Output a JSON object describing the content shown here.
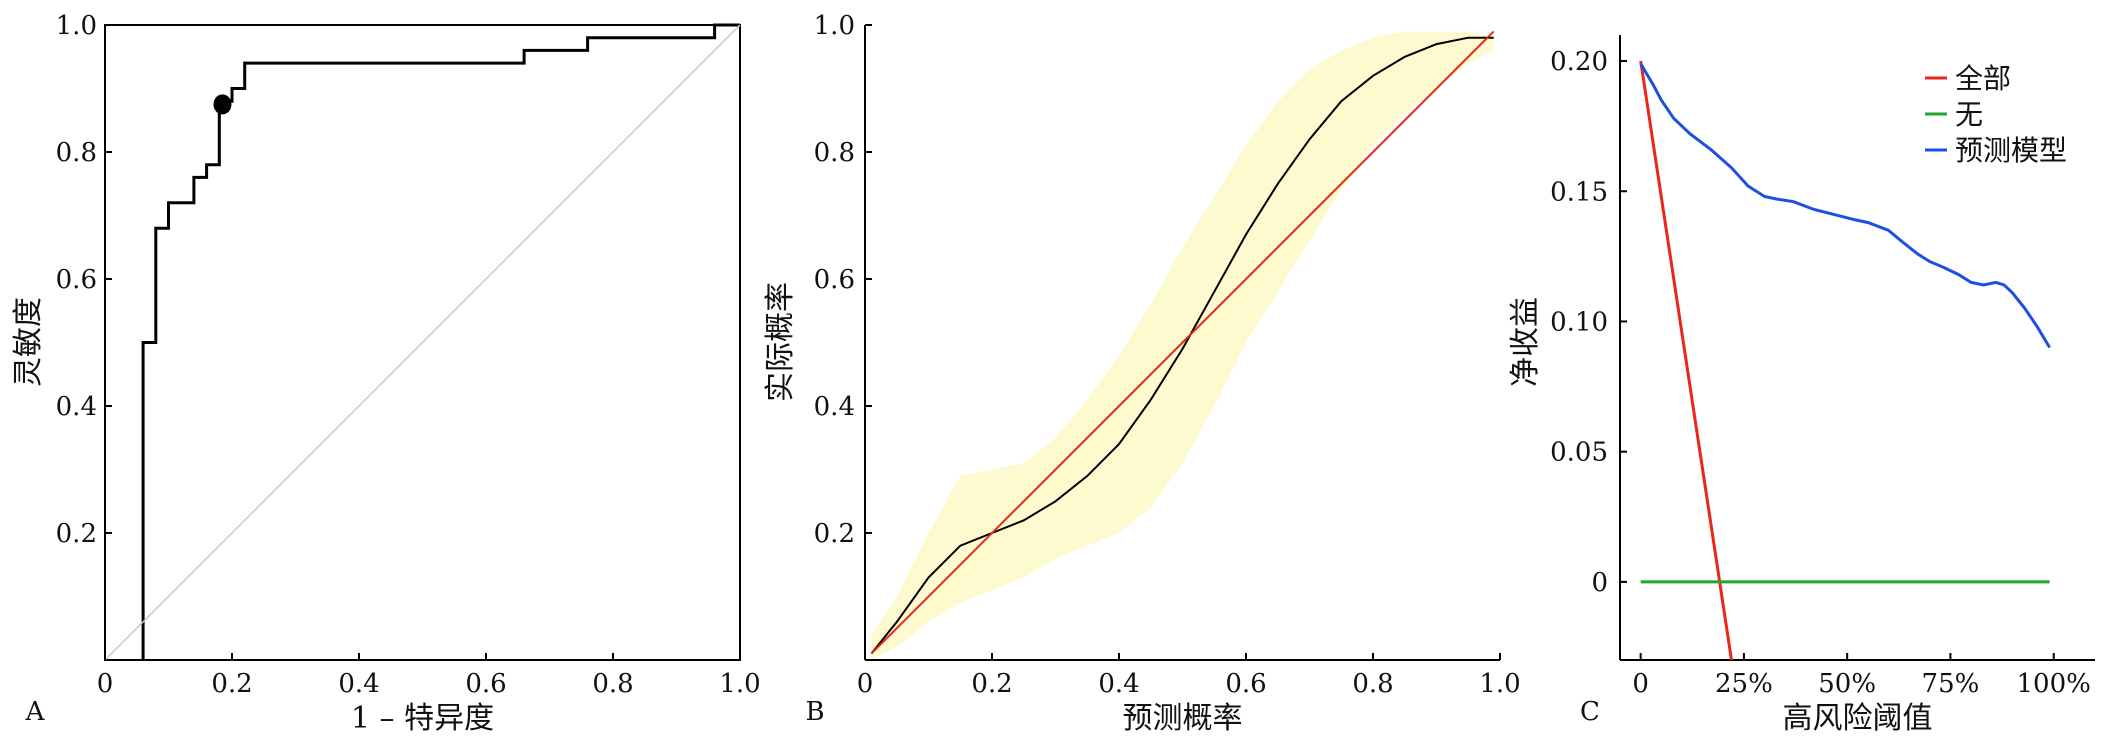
{
  "chart_data": [
    {
      "panel": "A",
      "type": "line",
      "xlabel": "1 – 特异度",
      "ylabel": "灵敏度",
      "xlim": [
        0,
        1
      ],
      "ylim": [
        0,
        1
      ],
      "x_ticks": [
        "0",
        "0.2",
        "0.4",
        "0.6",
        "0.8",
        "1.0"
      ],
      "y_ticks": [
        "0.2",
        "0.4",
        "0.6",
        "0.8",
        "1.0"
      ],
      "y_tick_values": [
        0.2,
        0.4,
        0.6,
        0.8,
        1.0
      ],
      "series": [
        {
          "role": "roc",
          "color": "#000000",
          "x": [
            0.06,
            0.06,
            0.08,
            0.08,
            0.1,
            0.1,
            0.14,
            0.14,
            0.16,
            0.16,
            0.18,
            0.18,
            0.2,
            0.2,
            0.22,
            0.22,
            0.66,
            0.66,
            0.76,
            0.76,
            0.96,
            0.96,
            1.0
          ],
          "y": [
            0.0,
            0.5,
            0.5,
            0.68,
            0.68,
            0.72,
            0.72,
            0.76,
            0.76,
            0.78,
            0.78,
            0.88,
            0.88,
            0.9,
            0.9,
            0.94,
            0.94,
            0.96,
            0.96,
            0.98,
            0.98,
            1.0,
            1.0
          ]
        },
        {
          "role": "reference-diagonal",
          "color": "#c8c8c8",
          "x": [
            0,
            1
          ],
          "y": [
            0,
            1
          ]
        }
      ],
      "marked_point": {
        "x": 0.185,
        "y": 0.875
      }
    },
    {
      "panel": "B",
      "type": "line",
      "xlabel": "预测概率",
      "ylabel": "实际概率",
      "xlim": [
        0,
        1
      ],
      "ylim": [
        0,
        1
      ],
      "x_ticks": [
        "0",
        "0.2",
        "0.4",
        "0.6",
        "0.8",
        "1.0"
      ],
      "y_ticks": [
        "0.2",
        "0.4",
        "0.6",
        "0.8",
        "1.0"
      ],
      "y_tick_values": [
        0.2,
        0.4,
        0.6,
        0.8,
        1.0
      ],
      "series": [
        {
          "role": "calibration-curve",
          "color": "#000000",
          "x": [
            0.01,
            0.05,
            0.1,
            0.15,
            0.2,
            0.25,
            0.3,
            0.35,
            0.4,
            0.45,
            0.5,
            0.55,
            0.6,
            0.65,
            0.7,
            0.75,
            0.8,
            0.85,
            0.9,
            0.95,
            0.99
          ],
          "y": [
            0.01,
            0.06,
            0.13,
            0.18,
            0.2,
            0.22,
            0.25,
            0.29,
            0.34,
            0.41,
            0.49,
            0.58,
            0.67,
            0.75,
            0.82,
            0.88,
            0.92,
            0.95,
            0.97,
            0.98,
            0.98
          ]
        },
        {
          "role": "ideal-line",
          "color": "#e8261c",
          "x": [
            0.01,
            0.99
          ],
          "y": [
            0.01,
            0.99
          ]
        }
      ],
      "confidence_band": {
        "color": "#fdfad0",
        "x": [
          0.01,
          0.05,
          0.1,
          0.15,
          0.2,
          0.25,
          0.3,
          0.35,
          0.4,
          0.45,
          0.5,
          0.55,
          0.6,
          0.65,
          0.7,
          0.75,
          0.8,
          0.85,
          0.9,
          0.95,
          0.99
        ],
        "upper": [
          0.04,
          0.1,
          0.2,
          0.29,
          0.3,
          0.31,
          0.35,
          0.41,
          0.48,
          0.56,
          0.65,
          0.73,
          0.81,
          0.88,
          0.93,
          0.96,
          0.98,
          0.99,
          0.99,
          0.99,
          0.98
        ],
        "lower": [
          0.0,
          0.02,
          0.06,
          0.09,
          0.11,
          0.13,
          0.16,
          0.18,
          0.2,
          0.24,
          0.31,
          0.4,
          0.5,
          0.58,
          0.66,
          0.74,
          0.81,
          0.86,
          0.9,
          0.94,
          0.96
        ]
      }
    },
    {
      "panel": "C",
      "type": "line",
      "xlabel": "高风险阈值",
      "ylabel": "净收益",
      "xlim": [
        -0.05,
        1.1
      ],
      "ylim": [
        -0.03,
        0.21
      ],
      "x_ticks": [
        "0",
        "25%",
        "50%",
        "75%",
        "100%"
      ],
      "x_tick_values": [
        0,
        0.25,
        0.5,
        0.75,
        1.0
      ],
      "y_ticks": [
        "0.20",
        "0.15",
        "0.10",
        "0.05",
        "0"
      ],
      "y_tick_values": [
        0.2,
        0.15,
        0.1,
        0.05,
        0.0
      ],
      "legend_position": "top-right",
      "series": [
        {
          "name": "全部",
          "color": "#e8261c",
          "x": [
            0.0,
            0.22
          ],
          "y": [
            0.2,
            -0.03
          ]
        },
        {
          "name": "无",
          "color": "#22a52b",
          "x": [
            0.0,
            0.99
          ],
          "y": [
            0.0,
            0.0
          ]
        },
        {
          "name": "预测模型",
          "color": "#1f4fe0",
          "x": [
            0.0,
            0.03,
            0.05,
            0.08,
            0.12,
            0.17,
            0.22,
            0.26,
            0.3,
            0.33,
            0.37,
            0.42,
            0.47,
            0.52,
            0.55,
            0.6,
            0.63,
            0.67,
            0.7,
            0.73,
            0.77,
            0.8,
            0.83,
            0.86,
            0.88,
            0.9,
            0.93,
            0.96,
            0.99
          ],
          "y": [
            0.199,
            0.191,
            0.185,
            0.178,
            0.172,
            0.166,
            0.159,
            0.152,
            0.148,
            0.147,
            0.146,
            0.143,
            0.141,
            0.139,
            0.138,
            0.135,
            0.131,
            0.126,
            0.123,
            0.121,
            0.118,
            0.115,
            0.114,
            0.115,
            0.114,
            0.111,
            0.105,
            0.098,
            0.09
          ]
        }
      ]
    }
  ]
}
